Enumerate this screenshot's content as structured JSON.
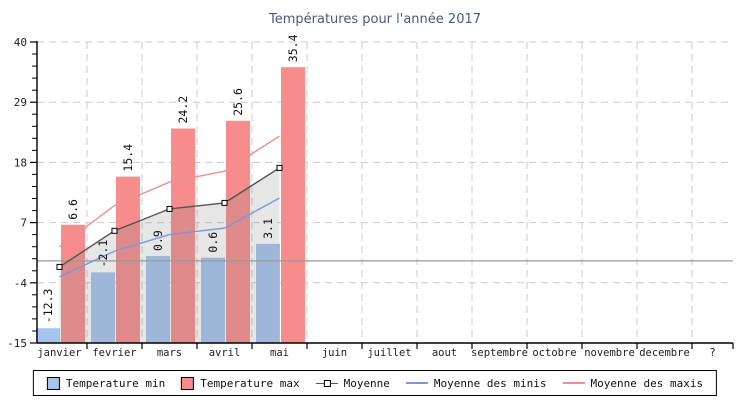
{
  "title": "Températures pour l'année 2017",
  "chart_data": {
    "type": "bar",
    "title": "Températures pour l'année 2017",
    "categories": [
      "janvier",
      "fevrier",
      "mars",
      "avril",
      "mai",
      "juin",
      "juillet",
      "aout",
      "septembre",
      "octobre",
      "novembre",
      "decembre",
      "?"
    ],
    "ylim": [
      -15,
      40
    ],
    "yticks": [
      40,
      29,
      18,
      7,
      -4,
      -15
    ],
    "grid": true,
    "legend_position": "bottom",
    "zero_line": 0,
    "series": [
      {
        "name": "Temperature min",
        "type": "bar",
        "color": "#A6C4EE",
        "values": [
          -12.3,
          -2.1,
          0.9,
          0.6,
          3.1,
          null,
          null,
          null,
          null,
          null,
          null,
          null,
          null
        ],
        "labels": [
          "-12.3",
          "-2.1",
          "0.9",
          "0.6",
          "3.1"
        ]
      },
      {
        "name": "Temperature max",
        "type": "bar",
        "color": "#F68C8C",
        "values": [
          6.6,
          15.4,
          24.2,
          25.6,
          35.4,
          null,
          null,
          null,
          null,
          null,
          null,
          null,
          null
        ],
        "labels": [
          "6.6",
          "15.4",
          "24.2",
          "25.6",
          "35.4"
        ]
      },
      {
        "name": "Moyenne",
        "type": "line",
        "color": "#555555",
        "marker": "square",
        "area_fill": "rgba(128,128,128,0.2)",
        "values": [
          -1.1,
          5.5,
          9.5,
          10.6,
          17.0
        ]
      },
      {
        "name": "Moyenne des minis",
        "type": "line",
        "color": "#7B97DE",
        "values": [
          -2.9,
          1.8,
          4.8,
          6.0,
          11.5
        ]
      },
      {
        "name": "Moyenne des maxis",
        "type": "line",
        "color": "#F09090",
        "values": [
          2.6,
          10.1,
          14.4,
          16.4,
          22.8
        ]
      }
    ]
  },
  "legend": {
    "items": [
      {
        "label": "Temperature min"
      },
      {
        "label": "Temperature max"
      },
      {
        "label": "Moyenne"
      },
      {
        "label": "Moyenne des minis"
      },
      {
        "label": "Moyenne des maxis"
      }
    ]
  },
  "colors": {
    "title": "#4A5A7B",
    "grid": "#CBCBCB",
    "axis": "#000000",
    "zero_line": "#999999",
    "text": "#222222",
    "bar_label": "#111111"
  }
}
